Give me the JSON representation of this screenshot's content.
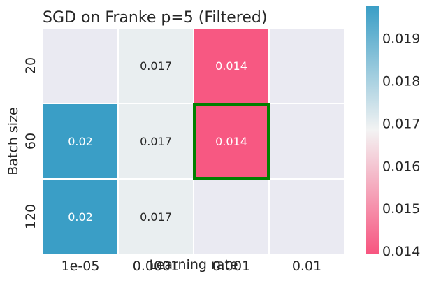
{
  "chart_data": {
    "type": "heatmap",
    "title": "SGD on Franke p=5 (Filtered)",
    "xlabel": "Learning rate",
    "ylabel": "Batch size",
    "x_categories": [
      "1e-05",
      "0.0001",
      "0.001",
      "0.01"
    ],
    "y_categories": [
      "20",
      "60",
      "120"
    ],
    "values": [
      [
        null,
        0.017,
        0.014,
        null
      ],
      [
        0.02,
        0.017,
        0.014,
        null
      ],
      [
        0.02,
        0.017,
        null,
        null
      ]
    ],
    "cell_labels": [
      [
        "",
        "0.017",
        "0.014",
        ""
      ],
      [
        "0.02",
        "0.017",
        "0.014",
        ""
      ],
      [
        "0.02",
        "0.017",
        "",
        ""
      ]
    ],
    "highlight": {
      "row": 1,
      "col": 2,
      "color": "#008000"
    },
    "colorbar": {
      "min": 0.01392,
      "max": 0.01975,
      "ticks": [
        "0.014",
        "0.015",
        "0.016",
        "0.017",
        "0.018",
        "0.019"
      ],
      "colors": {
        "low": "#f7547f",
        "mid": "#f3f3f3",
        "high": "#3a9ec6"
      }
    },
    "missing_color": "#eaeaf2"
  }
}
